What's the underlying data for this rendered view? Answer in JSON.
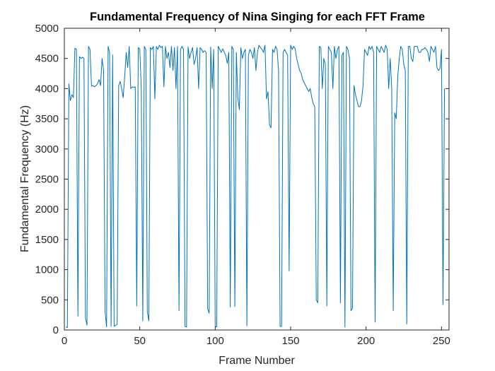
{
  "chart_data": {
    "type": "line",
    "title": "Fundamental Frequency of Nina Singing for each FFT Frame",
    "xlabel": "Frame Number",
    "ylabel": "Fundamental Frequency (Hz)",
    "xlim": [
      0,
      255
    ],
    "ylim": [
      0,
      5000
    ],
    "xticks": [
      0,
      50,
      100,
      150,
      200,
      250
    ],
    "yticks": [
      0,
      500,
      1000,
      1500,
      2000,
      2500,
      3000,
      3500,
      4000,
      4500,
      5000
    ],
    "grid": false,
    "legend": "none",
    "colors": {
      "series": "#0072BD",
      "axes": "#262626",
      "background": "#ffffff"
    },
    "series": [
      {
        "values": [
          50,
          40,
          4080,
          3800,
          3900,
          3850,
          4670,
          4650,
          230,
          4530,
          4500,
          4520,
          4500,
          200,
          80,
          4700,
          4650,
          4040,
          4050,
          4030,
          4050,
          4080,
          4150,
          4050,
          4500,
          4300,
          300,
          50,
          4700,
          4600,
          60,
          4560,
          60,
          80,
          90,
          4050,
          4120,
          4000,
          3850,
          4200,
          4600,
          4350,
          4700,
          4000,
          4030,
          4020,
          4030,
          400,
          4680,
          4660,
          4000,
          150,
          4700,
          4650,
          300,
          150,
          4680,
          4650,
          4700,
          3830,
          4700,
          4650,
          4720,
          4680,
          4700,
          4030,
          4700,
          4500,
          4600,
          4350,
          4700,
          4300,
          4680,
          4000,
          4700,
          320,
          4650,
          4700,
          4650,
          60,
          50,
          4690,
          4500,
          4600,
          4680,
          4400,
          4500,
          4680,
          4000,
          4680,
          4650,
          4600,
          4630,
          4600,
          350,
          280,
          4690,
          4000,
          4650,
          60,
          50,
          4700,
          4650,
          4600,
          4660,
          4600,
          4550,
          4420,
          4600,
          380,
          4700,
          4650,
          390,
          4600,
          3850,
          3650,
          4680,
          4500,
          4600,
          4650,
          70,
          4550,
          4650,
          4600,
          4500,
          4680,
          4300,
          4600,
          4720,
          4680,
          4650,
          4600,
          4720,
          3830,
          3950,
          3400,
          3350,
          4650,
          4600,
          4700,
          4650,
          4300,
          60,
          60,
          4600,
          4650,
          4600,
          4550,
          980,
          4720,
          4650,
          4700,
          4660,
          4500,
          4400,
          4300,
          4250,
          4150,
          4100,
          4050,
          4000,
          3950,
          4000,
          3850,
          3750,
          3700,
          500,
          450,
          4700,
          4680,
          4000,
          4500,
          4400,
          400,
          4700,
          4650,
          4600,
          4000,
          4700,
          4500,
          4650,
          4700,
          450,
          4550,
          4600,
          50,
          4700,
          4650,
          4500,
          320,
          360,
          4050,
          3900,
          3800,
          3700,
          3700,
          3800,
          4050,
          4650,
          4600,
          4550,
          4700,
          4650,
          4700,
          4600,
          130,
          4700,
          4650,
          4600,
          4700,
          4650,
          4600,
          4720,
          4650,
          4000,
          4500,
          4000,
          320,
          3600,
          3500,
          4200,
          4500,
          4700,
          4650,
          4400,
          4300,
          100,
          4700,
          4700,
          4500,
          4450,
          4700,
          4700,
          4700,
          4600,
          4600,
          4650,
          4650,
          4680,
          4650,
          4600,
          4450,
          4700,
          4650,
          4600,
          4700,
          4350,
          4300,
          4330,
          4650,
          420,
          4000
        ]
      }
    ]
  }
}
